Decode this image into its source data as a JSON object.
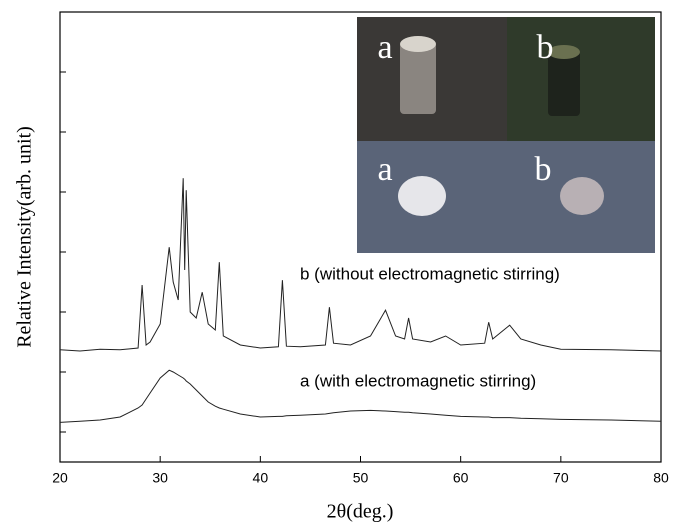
{
  "chart_data": {
    "type": "line",
    "x_label": "2θ(deg.)",
    "y_label": "Relative Intensity(arb. unit)",
    "x": [
      20,
      22,
      24,
      26,
      27.8,
      28.2,
      28.6,
      29,
      30,
      30.9,
      31.3,
      31.8,
      32.3,
      32.45,
      32.6,
      33,
      33.6,
      34.2,
      34.8,
      35.5,
      35.9,
      36.3,
      38,
      40,
      41.8,
      42.2,
      42.6,
      44,
      46.5,
      46.9,
      47.3,
      49,
      51,
      52.5,
      53.5,
      54.4,
      54.8,
      55.2,
      57,
      58.5,
      60,
      62.4,
      62.8,
      63.2,
      64.9,
      66,
      68,
      70,
      75,
      80
    ],
    "series": [
      {
        "name": "b (without electromagnetic stirring)",
        "color": "#222222",
        "values": [
          1.87,
          1.85,
          1.88,
          1.87,
          1.9,
          2.95,
          1.95,
          2.0,
          2.3,
          3.58,
          3.0,
          2.7,
          4.73,
          3.2,
          4.53,
          2.5,
          2.4,
          2.83,
          2.3,
          2.2,
          3.33,
          2.1,
          1.95,
          1.9,
          1.92,
          3.03,
          1.93,
          1.92,
          1.95,
          2.58,
          1.98,
          1.95,
          2.1,
          2.53,
          2.1,
          2.05,
          2.4,
          2.05,
          2.0,
          2.1,
          1.95,
          1.98,
          2.33,
          2.05,
          2.28,
          2.05,
          1.95,
          1.88,
          1.87,
          1.85
        ]
      },
      {
        "name": "a (with electromagnetic stirring)",
        "color": "#222222",
        "values": [
          0.66,
          0.68,
          0.7,
          0.75,
          0.9,
          0.95,
          1.05,
          1.15,
          1.4,
          1.53,
          1.5,
          1.45,
          1.4,
          1.38,
          1.35,
          1.3,
          1.2,
          1.1,
          1.0,
          0.93,
          0.9,
          0.88,
          0.8,
          0.75,
          0.76,
          0.76,
          0.77,
          0.78,
          0.8,
          0.81,
          0.82,
          0.85,
          0.86,
          0.85,
          0.84,
          0.83,
          0.83,
          0.82,
          0.8,
          0.78,
          0.76,
          0.75,
          0.75,
          0.74,
          0.74,
          0.73,
          0.72,
          0.71,
          0.7,
          0.68
        ]
      }
    ],
    "xlim": [
      20,
      80
    ],
    "xticks": [
      20,
      30,
      40,
      50,
      60,
      70,
      80
    ],
    "ylim": [
      0,
      7.5
    ],
    "yticks": [
      0.5,
      1.5,
      2.5,
      3.5,
      4.5,
      5.5,
      6.5
    ],
    "inset_labels": [
      "a",
      "b",
      "a",
      "b"
    ]
  }
}
